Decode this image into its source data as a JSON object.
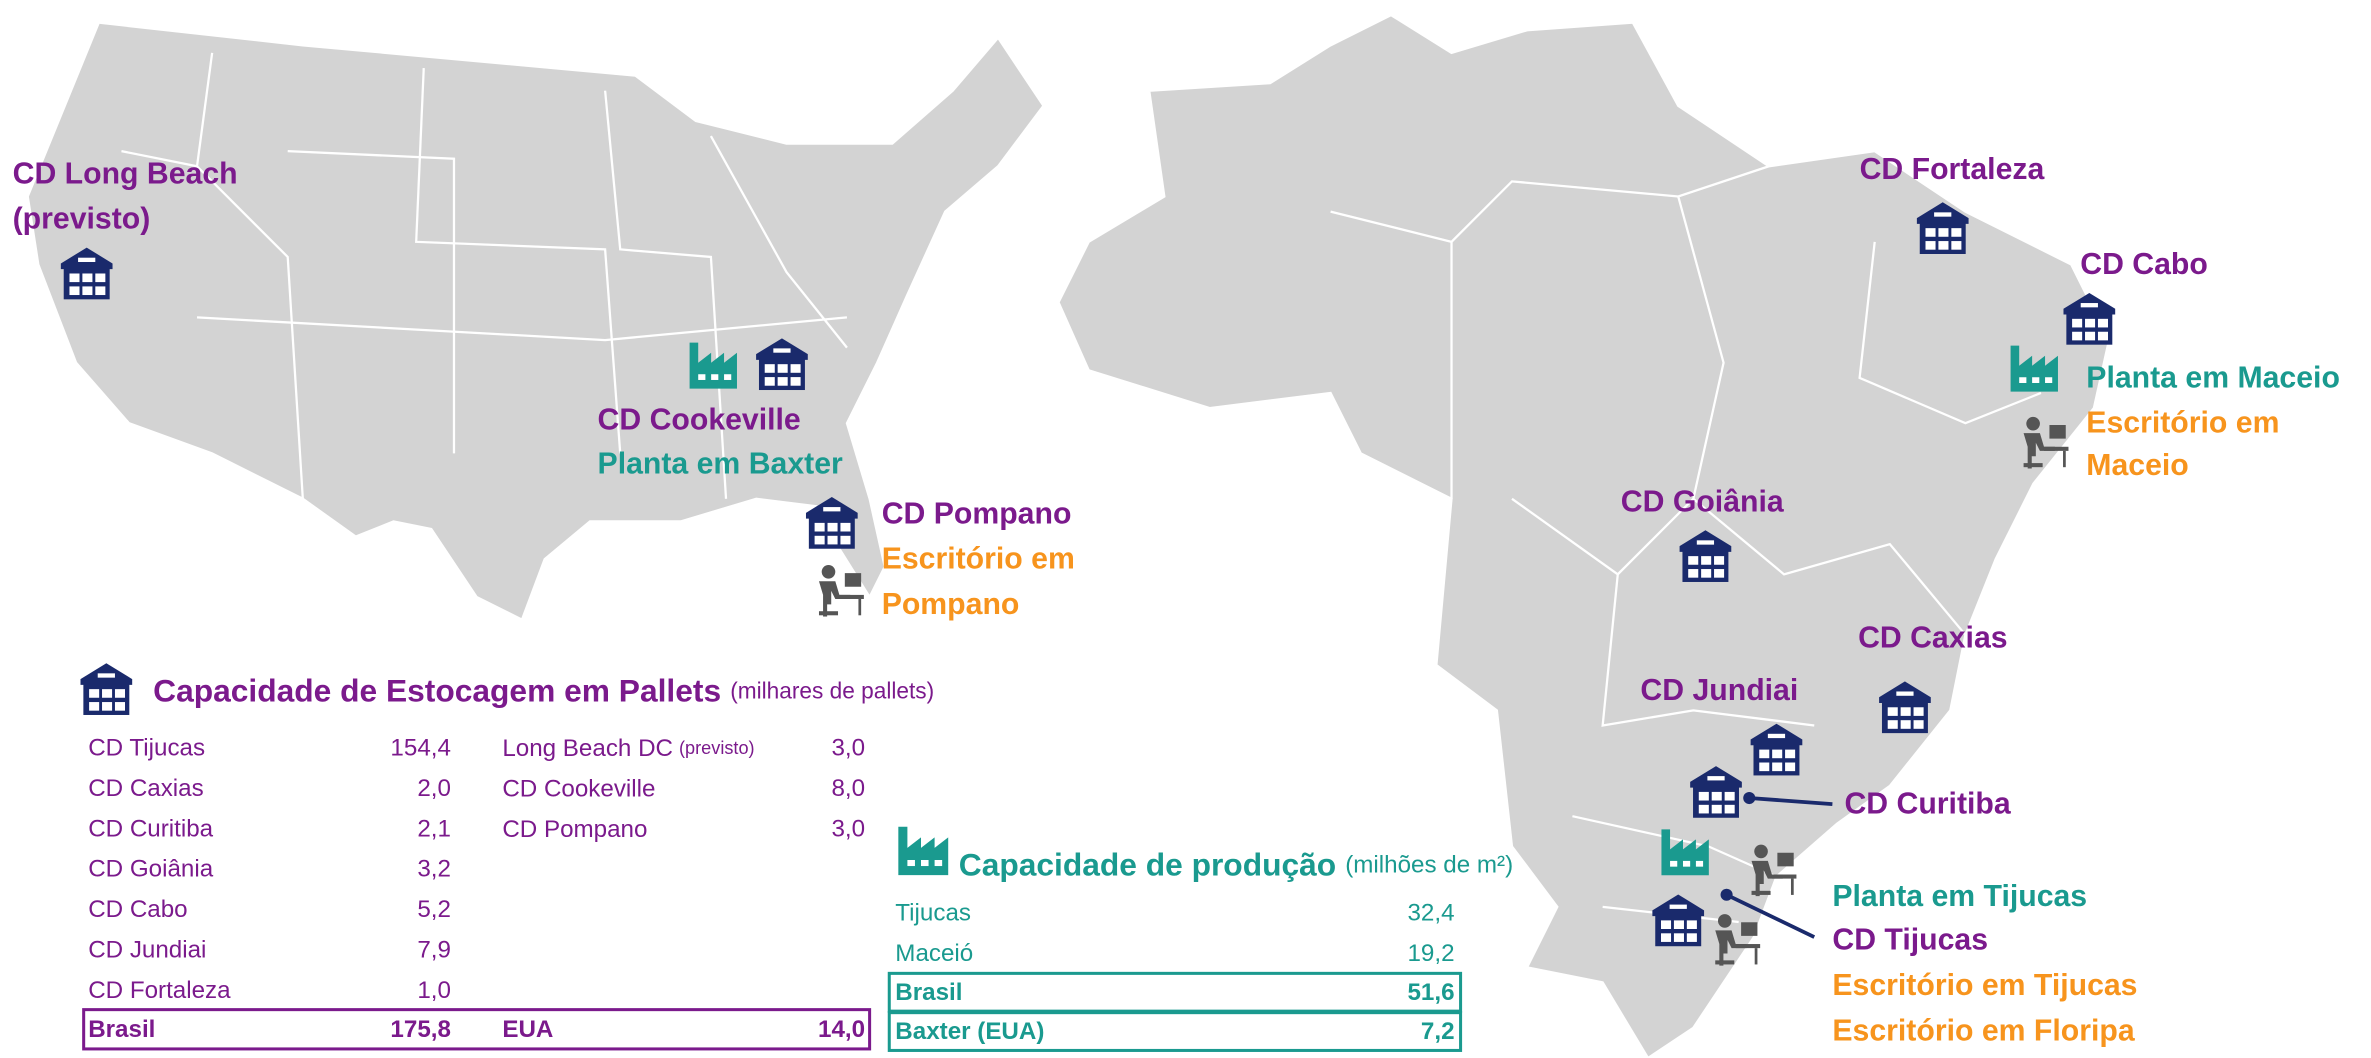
{
  "labels": {
    "long_beach": [
      "CD Long Beach",
      "(previsto)"
    ],
    "cookeville": "CD Cookeville",
    "baxter": "Planta em Baxter",
    "pompano": "CD Pompano",
    "pompano_office": [
      "Escritório em",
      "Pompano"
    ],
    "fortaleza": "CD Fortaleza",
    "cabo": "CD Cabo",
    "maceio_plant": "Planta em Maceio",
    "maceio_office": [
      "Escritório em",
      "Maceio"
    ],
    "goiania": "CD Goiânia",
    "caxias": "CD Caxias",
    "jundiai": "CD Jundiai",
    "curitiba": "CD Curitiba",
    "tijucas_plant": "Planta em Tijucas",
    "tijucas_cd": "CD Tijucas",
    "tijucas_office": "Escritório em Tijucas",
    "floripa_office": "Escritório em Floripa"
  },
  "storage": {
    "title": "Capacidade de Estocagem em Pallets",
    "unit": "(milhares de pallets)",
    "brazil": {
      "rows": [
        [
          "CD Tijucas",
          "154,4"
        ],
        [
          "CD Caxias",
          "2,0"
        ],
        [
          "CD Curitiba",
          "2,1"
        ],
        [
          "CD Goiânia",
          "3,2"
        ],
        [
          "CD Cabo",
          "5,2"
        ],
        [
          "CD Jundiai",
          "7,9"
        ],
        [
          "CD Fortaleza",
          "1,0"
        ]
      ],
      "total": [
        "Brasil",
        "175,8"
      ]
    },
    "usa": {
      "rows": [
        {
          "name": "Long Beach DC",
          "note": "(previsto)",
          "value": "3,0"
        },
        {
          "name": "CD Cookeville",
          "value": "8,0"
        },
        {
          "name": "CD Pompano",
          "value": "3,0"
        }
      ],
      "total": [
        "EUA",
        "14,0"
      ]
    }
  },
  "production": {
    "title": "Capacidade de produção",
    "unit": "(milhões de m²)",
    "rows": [
      [
        "Tijucas",
        "32,4"
      ],
      [
        "Maceió",
        "19,2"
      ]
    ],
    "totals": [
      [
        "Brasil",
        "51,6"
      ],
      [
        "Baxter (EUA)",
        "7,2"
      ]
    ]
  }
}
